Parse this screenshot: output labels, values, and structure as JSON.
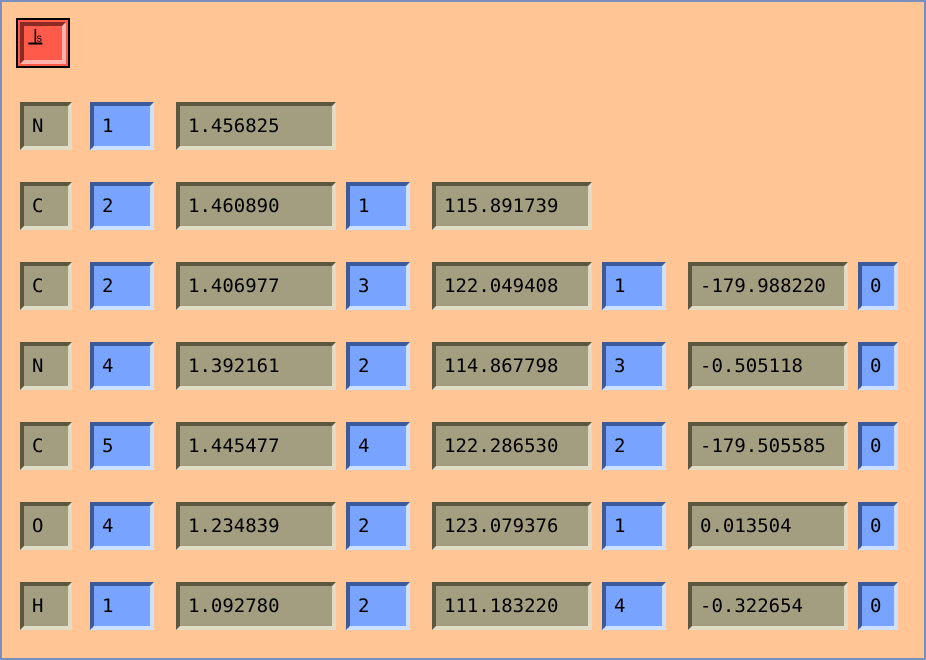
{
  "toolbar": {
    "button_icon": "anchor-glyph"
  },
  "colors": {
    "background": "#ffc594",
    "value_field": "#a39e80",
    "ref_field": "#78a3ff",
    "top_button": "#ff5a4a"
  },
  "rows": [
    {
      "atom": "N",
      "ref1": "1",
      "bond": "1.456825"
    },
    {
      "atom": "C",
      "ref1": "2",
      "bond": "1.460890",
      "ref2": "1",
      "angle": "115.891739"
    },
    {
      "atom": "C",
      "ref1": "2",
      "bond": "1.406977",
      "ref2": "3",
      "angle": "122.049408",
      "ref3": "1",
      "dihedral": "-179.988220",
      "flag": "0"
    },
    {
      "atom": "N",
      "ref1": "4",
      "bond": "1.392161",
      "ref2": "2",
      "angle": "114.867798",
      "ref3": "3",
      "dihedral": "-0.505118",
      "flag": "0"
    },
    {
      "atom": "C",
      "ref1": "5",
      "bond": "1.445477",
      "ref2": "4",
      "angle": "122.286530",
      "ref3": "2",
      "dihedral": "-179.505585",
      "flag": "0"
    },
    {
      "atom": "O",
      "ref1": "4",
      "bond": "1.234839",
      "ref2": "2",
      "angle": "123.079376",
      "ref3": "1",
      "dihedral": "0.013504",
      "flag": "0"
    },
    {
      "atom": "H",
      "ref1": "1",
      "bond": "1.092780",
      "ref2": "2",
      "angle": "111.183220",
      "ref3": "4",
      "dihedral": "-0.322654",
      "flag": "0"
    }
  ]
}
